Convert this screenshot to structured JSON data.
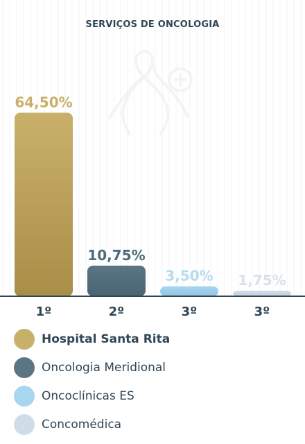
{
  "chart_data": {
    "type": "bar",
    "title": "SERVIÇOS DE ONCOLOGIA",
    "categories": [
      "1º",
      "2º",
      "3º",
      "3º"
    ],
    "values": [
      64.5,
      10.75,
      3.5,
      1.75
    ],
    "value_labels": [
      "64,50%",
      "10,75%",
      "3,50%",
      "1,75%"
    ],
    "ylim": [
      0,
      100
    ],
    "grid": false,
    "legend_position": "bottom",
    "series": [
      {
        "name": "Hospital Santa Rita",
        "value": 64.5,
        "color": "#c9b06a",
        "color_dark": "#a98e48",
        "label_color": "#c9b06a",
        "bold": true
      },
      {
        "name": "Oncologia Meridional",
        "value": 10.75,
        "color": "#5b7585",
        "color_dark": "#496473",
        "label_color": "#4e6a7b",
        "bold": false
      },
      {
        "name": "Oncoclínicas ES",
        "value": 3.5,
        "color": "#a8d6ef",
        "color_dark": "#92c6e6",
        "label_color": "#b6dbf0",
        "bold": false
      },
      {
        "name": "Concomédica",
        "value": 1.75,
        "color": "#cfdde8",
        "color_dark": "#c1d1de",
        "label_color": "#d6e2ea",
        "bold": false
      }
    ]
  },
  "colors": {
    "axis": "#2f4654",
    "text": "#2f4654",
    "background": "#ffffff",
    "pattern": "#e7ebee"
  },
  "icons": {
    "watermark": "ribbon-plus-icon"
  }
}
